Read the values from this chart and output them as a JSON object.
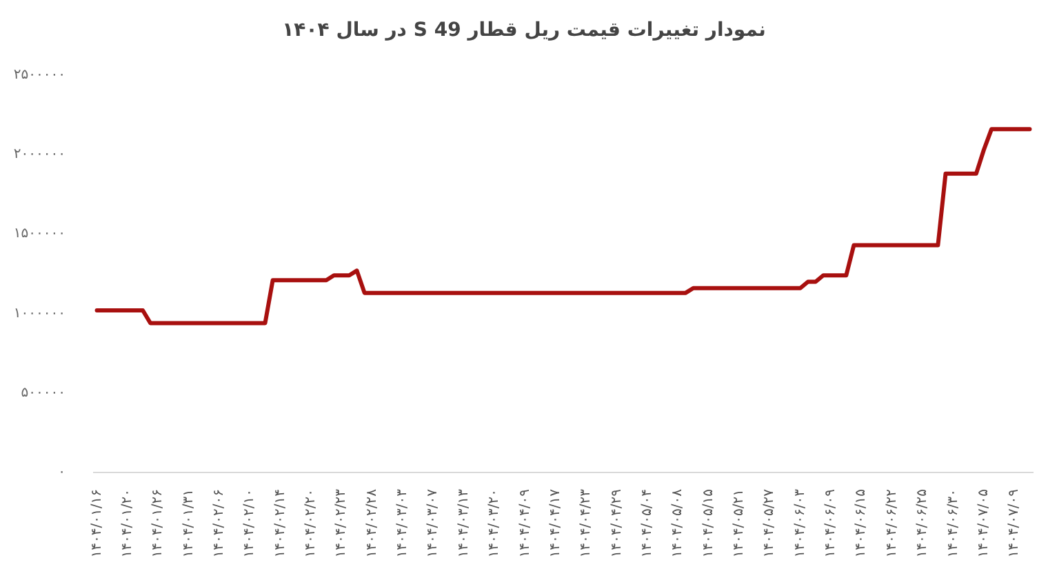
{
  "chart_data": {
    "type": "line",
    "title": "نمودار تغییرات قیمت ریل قطار S 49 در سال ۱۴۰۴",
    "categories": [
      "۱۴۰۴/۰۱/۱۶",
      null,
      null,
      null,
      "۱۴۰۴/۰۱/۲۰",
      null,
      null,
      null,
      "۱۴۰۴/۰۱/۲۶",
      null,
      null,
      null,
      "۱۴۰۴/۰۱/۳۱",
      null,
      null,
      null,
      "۱۴۰۴/۰۲/۰۶",
      null,
      null,
      null,
      "۱۴۰۴/۰۲/۱۰",
      null,
      null,
      null,
      "۱۴۰۴/۰۲/۱۴",
      null,
      null,
      null,
      "۱۴۰۴/۰۲/۲۰",
      null,
      null,
      null,
      "۱۴۰۴/۰۲/۲۳",
      null,
      null,
      null,
      "۱۴۰۴/۰۲/۲۸",
      null,
      null,
      null,
      "۱۴۰۴/۰۳/۰۳",
      null,
      null,
      null,
      "۱۴۰۴/۰۳/۰۷",
      null,
      null,
      null,
      "۱۴۰۴/۰۳/۱۳",
      null,
      null,
      null,
      "۱۴۰۴/۰۳/۲۰",
      null,
      null,
      null,
      "۱۴۰۴/۰۴/۰۹",
      null,
      null,
      null,
      "۱۴۰۴/۰۴/۱۷",
      null,
      null,
      null,
      "۱۴۰۴/۰۴/۲۳",
      null,
      null,
      null,
      "۱۴۰۴/۰۴/۲۹",
      null,
      null,
      null,
      "۱۴۰۴/۰۵/۰۴",
      null,
      null,
      null,
      "۱۴۰۴/۰۵/۰۸",
      null,
      null,
      null,
      "۱۴۰۴/۰۵/۱۵",
      null,
      null,
      null,
      "۱۴۰۴/۰۵/۲۱",
      null,
      null,
      null,
      "۱۴۰۴/۰۵/۲۷",
      null,
      null,
      null,
      "۱۴۰۴/۰۶/۰۳",
      null,
      null,
      null,
      "۱۴۰۴/۰۶/۰۹",
      null,
      null,
      null,
      "۱۴۰۴/۰۶/۱۵",
      null,
      null,
      null,
      "۱۴۰۴/۰۶/۲۲",
      null,
      null,
      null,
      "۱۴۰۴/۰۶/۲۵",
      null,
      null,
      null,
      "۱۴۰۴/۰۶/۳۰",
      null,
      null,
      null,
      "۱۴۰۴/۰۷/۰۵",
      null,
      null,
      null,
      "۱۴۰۴/۰۷/۰۹",
      null,
      null
    ],
    "series": [
      {
        "color": "#a8100f",
        "values": [
          1020000,
          1020000,
          1020000,
          1020000,
          1020000,
          1020000,
          1020000,
          940000,
          940000,
          940000,
          940000,
          940000,
          940000,
          940000,
          940000,
          940000,
          940000,
          940000,
          940000,
          940000,
          940000,
          940000,
          940000,
          1210000,
          1210000,
          1210000,
          1210000,
          1210000,
          1210000,
          1210000,
          1210000,
          1240000,
          1240000,
          1240000,
          1270000,
          1130000,
          1130000,
          1130000,
          1130000,
          1130000,
          1130000,
          1130000,
          1130000,
          1130000,
          1130000,
          1130000,
          1130000,
          1130000,
          1130000,
          1130000,
          1130000,
          1130000,
          1130000,
          1130000,
          1130000,
          1130000,
          1130000,
          1130000,
          1130000,
          1130000,
          1130000,
          1130000,
          1130000,
          1130000,
          1130000,
          1130000,
          1130000,
          1130000,
          1130000,
          1130000,
          1130000,
          1130000,
          1130000,
          1130000,
          1130000,
          1130000,
          1130000,
          1130000,
          1160000,
          1160000,
          1160000,
          1160000,
          1160000,
          1160000,
          1160000,
          1160000,
          1160000,
          1160000,
          1160000,
          1160000,
          1160000,
          1160000,
          1160000,
          1200000,
          1200000,
          1240000,
          1240000,
          1240000,
          1240000,
          1430000,
          1430000,
          1430000,
          1430000,
          1430000,
          1430000,
          1430000,
          1430000,
          1430000,
          1430000,
          1430000,
          1430000,
          1880000,
          1880000,
          1880000,
          1880000,
          1880000,
          2030000,
          2160000,
          2160000,
          2160000,
          2160000,
          2160000,
          2160000
        ]
      }
    ],
    "ylim": [
      0,
      2500000
    ],
    "yticks": [
      {
        "value": 0,
        "label": "۰"
      },
      {
        "value": 500000,
        "label": "۵۰۰۰۰۰"
      },
      {
        "value": 1000000,
        "label": "۱۰۰۰۰۰۰"
      },
      {
        "value": 1500000,
        "label": "۱۵۰۰۰۰۰"
      },
      {
        "value": 2000000,
        "label": "۲۰۰۰۰۰۰"
      },
      {
        "value": 2500000,
        "label": "۲۵۰۰۰۰۰"
      }
    ]
  }
}
